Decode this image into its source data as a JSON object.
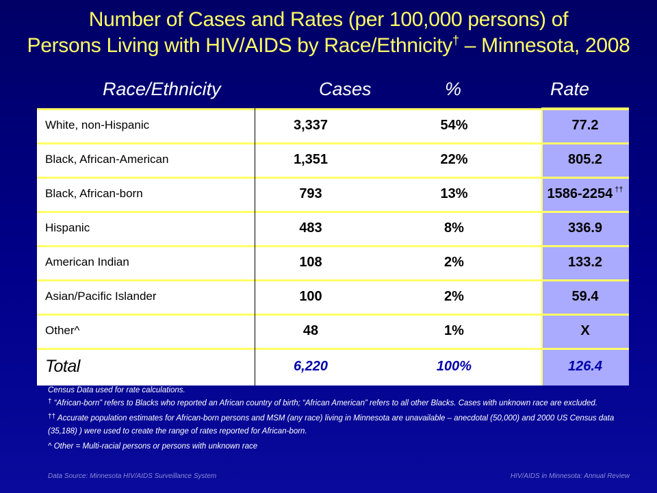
{
  "title": {
    "line1": "Number of Cases and Rates (per 100,000 persons) of",
    "line2_pre": "Persons Living with HIV/AIDS by Race/Ethnicity",
    "line2_sym": "†",
    "line2_post": " – Minnesota, 2008"
  },
  "headers": {
    "race": "Race/Ethnicity",
    "cases": "Cases",
    "pct": "%",
    "rate": "Rate"
  },
  "rows": [
    {
      "race": "White, non-Hispanic",
      "cases": "3,337",
      "pct": "54%",
      "rate": "77.2",
      "rate_suffix": ""
    },
    {
      "race": "Black, African-American",
      "cases": "1,351",
      "pct": "22%",
      "rate": "805.2",
      "rate_suffix": ""
    },
    {
      "race": "Black, African-born",
      "cases": "793",
      "pct": "13%",
      "rate": "1586-2254",
      "rate_suffix": "††"
    },
    {
      "race": "Hispanic",
      "cases": "483",
      "pct": "8%",
      "rate": "336.9",
      "rate_suffix": ""
    },
    {
      "race": "American Indian",
      "cases": "108",
      "pct": "2%",
      "rate": "133.2",
      "rate_suffix": ""
    },
    {
      "race": "Asian/Pacific Islander",
      "cases": "100",
      "pct": "2%",
      "rate": "59.4",
      "rate_suffix": ""
    },
    {
      "race": "Other^",
      "cases": "48",
      "pct": "1%",
      "rate": "X",
      "rate_suffix": ""
    }
  ],
  "total": {
    "race": "Total",
    "cases": "6,220",
    "pct": "100%",
    "rate": "126.4"
  },
  "notes": {
    "census": "Census Data used for rate calculations.",
    "dagger_sym": "†",
    "dagger": " “African-born” refers to Blacks who reported an African country of birth; “African American” refers to all other Blacks.  Cases with unknown race are excluded.",
    "ddagger_sym": "††",
    "ddagger": " Accurate population estimates for African-born persons and MSM (any race) living in Minnesota are unavailable – anecdotal (50,000) and 2000 US Census data (35,188) ) were used to create the range of rates reported for African-born.",
    "other": "^ Other = Multi-racial persons or persons with unknown race"
  },
  "footer": {
    "source": "Data Source:  Minnesota HIV/AIDS Surveillance  System",
    "review": "HIV/AIDS in Minnesota:  Annual Review"
  },
  "colors": {
    "background": "#00008a",
    "title": "#ffff66",
    "rate_column": "#aaaaff",
    "total_text": "#0000aa"
  }
}
